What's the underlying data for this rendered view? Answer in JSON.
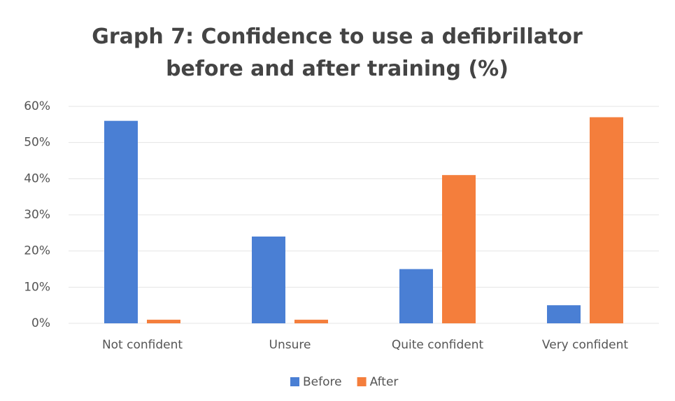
{
  "chart_data": {
    "type": "bar",
    "title": "Graph 7: Confidence to use a defibrillator before and after training (%)",
    "categories": [
      "Not confident",
      "Unsure",
      "Quite confident",
      "Very confident"
    ],
    "series": [
      {
        "name": "Before",
        "color": "#4a7fd4",
        "values": [
          56,
          24,
          15,
          5
        ]
      },
      {
        "name": "After",
        "color": "#f47e3c",
        "values": [
          1,
          1,
          41,
          57
        ]
      }
    ],
    "ylim": [
      0,
      60
    ],
    "yticks": [
      {
        "value": 0,
        "label": "0%"
      },
      {
        "value": 10,
        "label": "10%"
      },
      {
        "value": 20,
        "label": "20%"
      },
      {
        "value": 30,
        "label": "30%"
      },
      {
        "value": 40,
        "label": "40%"
      },
      {
        "value": 50,
        "label": "50%"
      },
      {
        "value": 60,
        "label": "60%"
      }
    ],
    "grid": true,
    "legend": "bottom"
  }
}
